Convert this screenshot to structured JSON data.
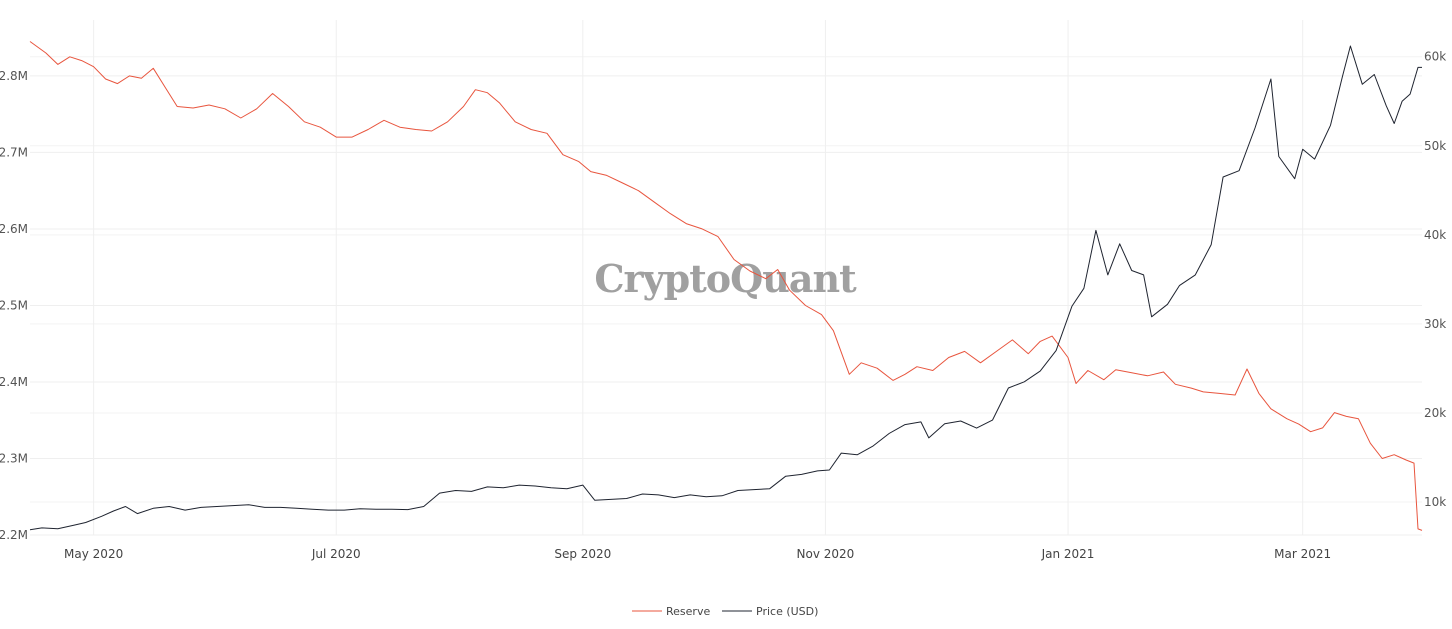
{
  "watermark": "CryptoQuant",
  "chart_data": {
    "type": "line",
    "grid": true,
    "legend_position": "bottom-center",
    "x_range": [
      "2020-04-15",
      "2021-03-31"
    ],
    "x_ticks": [
      {
        "date": "2020-05-01",
        "label": "May 2020"
      },
      {
        "date": "2020-07-01",
        "label": "Jul 2020"
      },
      {
        "date": "2020-09-01",
        "label": "Sep 2020"
      },
      {
        "date": "2020-11-01",
        "label": "Nov 2020"
      },
      {
        "date": "2021-01-01",
        "label": "Jan 2021"
      },
      {
        "date": "2021-03-01",
        "label": "Mar 2021"
      }
    ],
    "y_left": {
      "range": [
        2200000,
        2860000
      ],
      "ticks": [
        {
          "value": 2200000,
          "label": "2.2M"
        },
        {
          "value": 2300000,
          "label": "2.3M"
        },
        {
          "value": 2400000,
          "label": "2.4M"
        },
        {
          "value": 2500000,
          "label": "2.5M"
        },
        {
          "value": 2600000,
          "label": "2.6M"
        },
        {
          "value": 2700000,
          "label": "2.7M"
        },
        {
          "value": 2800000,
          "label": "2.8M"
        }
      ]
    },
    "y_right": {
      "range": [
        6300,
        63000
      ],
      "ticks": [
        {
          "value": 10000,
          "label": "10k"
        },
        {
          "value": 20000,
          "label": "20k"
        },
        {
          "value": 30000,
          "label": "30k"
        },
        {
          "value": 40000,
          "label": "40k"
        },
        {
          "value": 50000,
          "label": "50k"
        },
        {
          "value": 60000,
          "label": "60k"
        }
      ]
    },
    "series": [
      {
        "name": "Reserve",
        "axis": "left",
        "color": "#e8553e",
        "points": [
          [
            "2020-04-15",
            2845000
          ],
          [
            "2020-04-19",
            2830000
          ],
          [
            "2020-04-22",
            2815000
          ],
          [
            "2020-04-25",
            2825000
          ],
          [
            "2020-04-28",
            2820000
          ],
          [
            "2020-05-01",
            2812000
          ],
          [
            "2020-05-04",
            2796000
          ],
          [
            "2020-05-07",
            2790000
          ],
          [
            "2020-05-10",
            2800000
          ],
          [
            "2020-05-13",
            2797000
          ],
          [
            "2020-05-16",
            2810000
          ],
          [
            "2020-05-19",
            2785000
          ],
          [
            "2020-05-22",
            2760000
          ],
          [
            "2020-05-26",
            2758000
          ],
          [
            "2020-05-30",
            2762000
          ],
          [
            "2020-06-03",
            2757000
          ],
          [
            "2020-06-07",
            2745000
          ],
          [
            "2020-06-11",
            2757000
          ],
          [
            "2020-06-15",
            2777000
          ],
          [
            "2020-06-19",
            2760000
          ],
          [
            "2020-06-23",
            2740000
          ],
          [
            "2020-06-27",
            2733000
          ],
          [
            "2020-07-01",
            2720000
          ],
          [
            "2020-07-05",
            2720000
          ],
          [
            "2020-07-09",
            2730000
          ],
          [
            "2020-07-13",
            2742000
          ],
          [
            "2020-07-17",
            2733000
          ],
          [
            "2020-07-21",
            2730000
          ],
          [
            "2020-07-25",
            2728000
          ],
          [
            "2020-07-29",
            2740000
          ],
          [
            "2020-08-02",
            2760000
          ],
          [
            "2020-08-05",
            2782000
          ],
          [
            "2020-08-08",
            2778000
          ],
          [
            "2020-08-11",
            2765000
          ],
          [
            "2020-08-15",
            2740000
          ],
          [
            "2020-08-19",
            2730000
          ],
          [
            "2020-08-23",
            2725000
          ],
          [
            "2020-08-27",
            2697000
          ],
          [
            "2020-08-31",
            2688000
          ],
          [
            "2020-09-03",
            2675000
          ],
          [
            "2020-09-07",
            2670000
          ],
          [
            "2020-09-11",
            2660000
          ],
          [
            "2020-09-15",
            2650000
          ],
          [
            "2020-09-19",
            2635000
          ],
          [
            "2020-09-23",
            2620000
          ],
          [
            "2020-09-27",
            2607000
          ],
          [
            "2020-10-01",
            2600000
          ],
          [
            "2020-10-05",
            2590000
          ],
          [
            "2020-10-09",
            2560000
          ],
          [
            "2020-10-13",
            2545000
          ],
          [
            "2020-10-17",
            2535000
          ],
          [
            "2020-10-20",
            2547000
          ],
          [
            "2020-10-23",
            2520000
          ],
          [
            "2020-10-27",
            2500000
          ],
          [
            "2020-10-31",
            2488000
          ],
          [
            "2020-11-03",
            2467000
          ],
          [
            "2020-11-07",
            2410000
          ],
          [
            "2020-11-10",
            2425000
          ],
          [
            "2020-11-14",
            2418000
          ],
          [
            "2020-11-18",
            2402000
          ],
          [
            "2020-11-21",
            2410000
          ],
          [
            "2020-11-24",
            2420000
          ],
          [
            "2020-11-28",
            2415000
          ],
          [
            "2020-12-02",
            2432000
          ],
          [
            "2020-12-06",
            2440000
          ],
          [
            "2020-12-10",
            2425000
          ],
          [
            "2020-12-14",
            2440000
          ],
          [
            "2020-12-18",
            2455000
          ],
          [
            "2020-12-22",
            2437000
          ],
          [
            "2020-12-25",
            2453000
          ],
          [
            "2020-12-28",
            2460000
          ],
          [
            "2021-01-01",
            2432000
          ],
          [
            "2021-01-03",
            2398000
          ],
          [
            "2021-01-06",
            2415000
          ],
          [
            "2021-01-10",
            2403000
          ],
          [
            "2021-01-13",
            2416000
          ],
          [
            "2021-01-17",
            2412000
          ],
          [
            "2021-01-21",
            2408000
          ],
          [
            "2021-01-25",
            2413000
          ],
          [
            "2021-01-28",
            2397000
          ],
          [
            "2021-02-01",
            2392000
          ],
          [
            "2021-02-04",
            2387000
          ],
          [
            "2021-02-08",
            2385000
          ],
          [
            "2021-02-12",
            2383000
          ],
          [
            "2021-02-15",
            2417000
          ],
          [
            "2021-02-18",
            2385000
          ],
          [
            "2021-02-21",
            2365000
          ],
          [
            "2021-02-25",
            2352000
          ],
          [
            "2021-02-28",
            2345000
          ],
          [
            "2021-03-03",
            2335000
          ],
          [
            "2021-03-06",
            2340000
          ],
          [
            "2021-03-09",
            2360000
          ],
          [
            "2021-03-12",
            2355000
          ],
          [
            "2021-03-15",
            2352000
          ],
          [
            "2021-03-18",
            2320000
          ],
          [
            "2021-03-21",
            2300000
          ],
          [
            "2021-03-24",
            2305000
          ],
          [
            "2021-03-27",
            2298000
          ],
          [
            "2021-03-29",
            2294000
          ],
          [
            "2021-03-30",
            2208000
          ],
          [
            "2021-03-31",
            2206000
          ]
        ]
      },
      {
        "name": "Price (USD)",
        "axis": "right",
        "color": "#1f2430",
        "points": [
          [
            "2020-04-15",
            6900
          ],
          [
            "2020-04-18",
            7100
          ],
          [
            "2020-04-22",
            7000
          ],
          [
            "2020-04-26",
            7400
          ],
          [
            "2020-04-29",
            7700
          ],
          [
            "2020-05-03",
            8400
          ],
          [
            "2020-05-06",
            9000
          ],
          [
            "2020-05-09",
            9500
          ],
          [
            "2020-05-12",
            8700
          ],
          [
            "2020-05-16",
            9300
          ],
          [
            "2020-05-20",
            9500
          ],
          [
            "2020-05-24",
            9100
          ],
          [
            "2020-05-28",
            9400
          ],
          [
            "2020-06-01",
            9500
          ],
          [
            "2020-06-05",
            9600
          ],
          [
            "2020-06-09",
            9700
          ],
          [
            "2020-06-13",
            9400
          ],
          [
            "2020-06-17",
            9400
          ],
          [
            "2020-06-21",
            9300
          ],
          [
            "2020-06-25",
            9200
          ],
          [
            "2020-06-29",
            9100
          ],
          [
            "2020-07-03",
            9100
          ],
          [
            "2020-07-07",
            9250
          ],
          [
            "2020-07-11",
            9200
          ],
          [
            "2020-07-15",
            9200
          ],
          [
            "2020-07-19",
            9150
          ],
          [
            "2020-07-23",
            9500
          ],
          [
            "2020-07-27",
            11000
          ],
          [
            "2020-07-31",
            11300
          ],
          [
            "2020-08-04",
            11200
          ],
          [
            "2020-08-08",
            11700
          ],
          [
            "2020-08-12",
            11600
          ],
          [
            "2020-08-16",
            11900
          ],
          [
            "2020-08-20",
            11800
          ],
          [
            "2020-08-24",
            11600
          ],
          [
            "2020-08-28",
            11500
          ],
          [
            "2020-09-01",
            11900
          ],
          [
            "2020-09-04",
            10200
          ],
          [
            "2020-09-08",
            10300
          ],
          [
            "2020-09-12",
            10400
          ],
          [
            "2020-09-16",
            10900
          ],
          [
            "2020-09-20",
            10800
          ],
          [
            "2020-09-24",
            10500
          ],
          [
            "2020-09-28",
            10800
          ],
          [
            "2020-10-02",
            10600
          ],
          [
            "2020-10-06",
            10700
          ],
          [
            "2020-10-10",
            11300
          ],
          [
            "2020-10-14",
            11400
          ],
          [
            "2020-10-18",
            11500
          ],
          [
            "2020-10-22",
            12900
          ],
          [
            "2020-10-26",
            13100
          ],
          [
            "2020-10-30",
            13500
          ],
          [
            "2020-11-02",
            13600
          ],
          [
            "2020-11-05",
            15500
          ],
          [
            "2020-11-09",
            15300
          ],
          [
            "2020-11-13",
            16300
          ],
          [
            "2020-11-17",
            17700
          ],
          [
            "2020-11-21",
            18700
          ],
          [
            "2020-11-25",
            19000
          ],
          [
            "2020-11-27",
            17200
          ],
          [
            "2020-12-01",
            18800
          ],
          [
            "2020-12-05",
            19100
          ],
          [
            "2020-12-09",
            18300
          ],
          [
            "2020-12-13",
            19200
          ],
          [
            "2020-12-17",
            22800
          ],
          [
            "2020-12-21",
            23500
          ],
          [
            "2020-12-25",
            24700
          ],
          [
            "2020-12-29",
            27000
          ],
          [
            "2021-01-02",
            32000
          ],
          [
            "2021-01-05",
            34000
          ],
          [
            "2021-01-08",
            40500
          ],
          [
            "2021-01-11",
            35500
          ],
          [
            "2021-01-14",
            39000
          ],
          [
            "2021-01-17",
            36000
          ],
          [
            "2021-01-20",
            35500
          ],
          [
            "2021-01-22",
            30800
          ],
          [
            "2021-01-26",
            32200
          ],
          [
            "2021-01-29",
            34300
          ],
          [
            "2021-02-02",
            35500
          ],
          [
            "2021-02-06",
            38900
          ],
          [
            "2021-02-09",
            46500
          ],
          [
            "2021-02-13",
            47200
          ],
          [
            "2021-02-17",
            52000
          ],
          [
            "2021-02-21",
            57500
          ],
          [
            "2021-02-23",
            48800
          ],
          [
            "2021-02-27",
            46300
          ],
          [
            "2021-03-01",
            49600
          ],
          [
            "2021-03-04",
            48500
          ],
          [
            "2021-03-08",
            52300
          ],
          [
            "2021-03-11",
            57800
          ],
          [
            "2021-03-13",
            61200
          ],
          [
            "2021-03-16",
            56900
          ],
          [
            "2021-03-19",
            58000
          ],
          [
            "2021-03-22",
            54500
          ],
          [
            "2021-03-24",
            52500
          ],
          [
            "2021-03-26",
            55000
          ],
          [
            "2021-03-28",
            55800
          ],
          [
            "2021-03-30",
            58800
          ],
          [
            "2021-03-31",
            58800
          ]
        ]
      }
    ]
  }
}
